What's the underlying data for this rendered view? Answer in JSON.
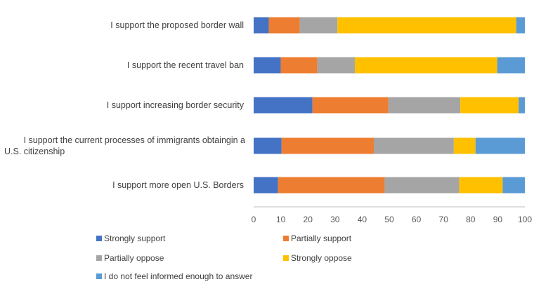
{
  "chart_data": {
    "type": "bar",
    "orientation": "horizontal",
    "stacked": true,
    "title": "",
    "xlabel": "",
    "ylabel": "",
    "xlim": [
      0,
      100
    ],
    "x_ticks": [
      "0",
      "10",
      "20",
      "30",
      "40",
      "50",
      "60",
      "70",
      "80",
      "90",
      "100"
    ],
    "grid": false,
    "legend_position": "bottom",
    "categories": [
      [
        "I support the proposed border wall"
      ],
      [
        "I support the recent travel ban"
      ],
      [
        "I support increasing border security"
      ],
      [
        "I support the current processes of immigrants obtaingin a",
        "U.S. citizenship"
      ],
      [
        "I support more open U.S. Borders"
      ]
    ],
    "series": [
      {
        "name": "Strongly support",
        "color": "#4472C4",
        "values": [
          5.6,
          10.0,
          21.7,
          10.3,
          9.0
        ]
      },
      {
        "name": "Partially support",
        "color": "#ED7D31",
        "values": [
          11.4,
          13.5,
          28.0,
          34.0,
          39.3
        ]
      },
      {
        "name": "Partially oppose",
        "color": "#A5A5A5",
        "values": [
          13.9,
          13.8,
          26.5,
          29.5,
          27.5
        ]
      },
      {
        "name": "Strongly oppose",
        "color": "#FFC000",
        "values": [
          65.9,
          52.5,
          21.5,
          8.0,
          16.0
        ]
      },
      {
        "name": "I do not feel informed enough to answer",
        "color": "#5B9BD5",
        "values": [
          3.2,
          10.2,
          2.3,
          18.2,
          8.2
        ]
      }
    ]
  }
}
